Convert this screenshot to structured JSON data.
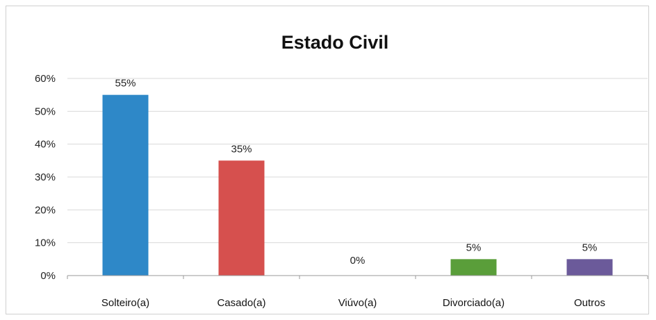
{
  "chart_data": {
    "type": "bar",
    "title": "Estado Civil",
    "xlabel": "",
    "ylabel": "",
    "categories": [
      "Solteiro(a)",
      "Casado(a)",
      "Viúvo(a)",
      "Divorciado(a)",
      "Outros"
    ],
    "values": [
      55,
      35,
      0,
      5,
      5
    ],
    "data_labels": [
      "55%",
      "35%",
      "0%",
      "5%",
      "5%"
    ],
    "colors": [
      "#2e88c8",
      "#d6504e",
      "#8a8a8a",
      "#5a9e3a",
      "#6b5a9a"
    ],
    "ylim": [
      0,
      60
    ],
    "yticks": [
      0,
      10,
      20,
      30,
      40,
      50,
      60
    ],
    "ytick_labels": [
      "0%",
      "10%",
      "20%",
      "30%",
      "40%",
      "50%",
      "60%"
    ],
    "grid": true,
    "legend": "none"
  }
}
